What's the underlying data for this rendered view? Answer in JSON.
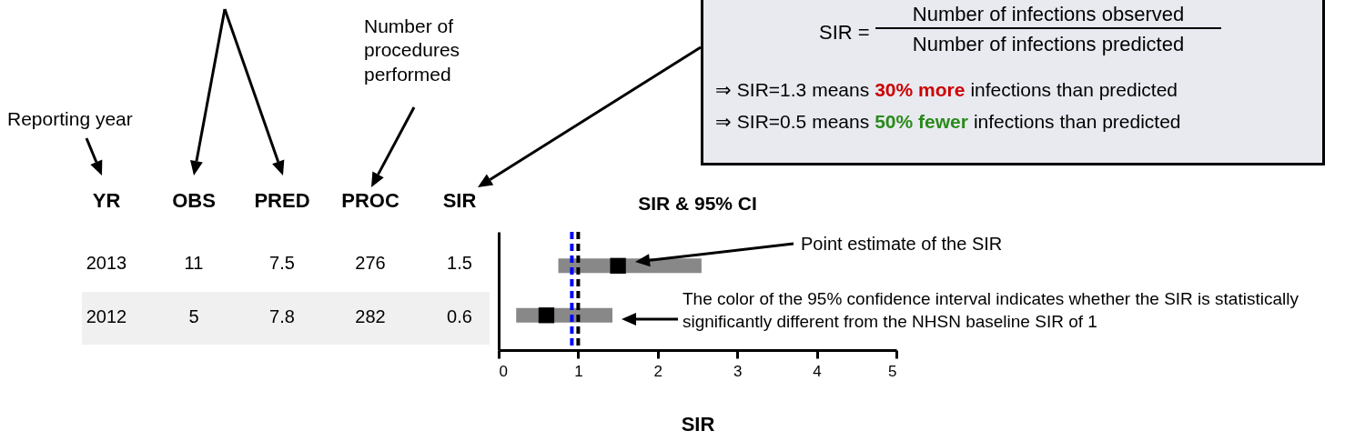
{
  "chart_data": [
    {
      "type": "other",
      "categories": [
        "YR",
        "OBS",
        "PRED",
        "PROC",
        "SIR"
      ],
      "cell_labels": [
        [
          "2013",
          "11",
          "7.5",
          "276",
          "1.5"
        ],
        [
          "2012",
          "5",
          "7.8",
          "282",
          "0.6"
        ]
      ]
    },
    {
      "type": "bar",
      "orientation": "horizontal",
      "title": "SIR & 95% CI",
      "xlabel": "SIR",
      "categories": [
        null,
        null
      ],
      "series": [
        {
          "type": "bar",
          "color": "#888888",
          "base": [
            0.75,
            0.22
          ],
          "values": [
            1.8,
            1.21
          ]
        },
        {
          "type": "scatter",
          "color": "#000000",
          "values": [
            1.5,
            0.6
          ]
        }
      ],
      "marker": "square",
      "xlim": [
        0,
        5
      ],
      "xticks": [
        0,
        1,
        2,
        3,
        4,
        5
      ],
      "tick_labels": "x",
      "ref_lines": [
        {
          "axis": "x",
          "value": 1,
          "color": "#000000",
          "line_style": "dashed"
        },
        {
          "axis": "x",
          "value": 0.92,
          "color": "#0000ff",
          "line_style": "dashed"
        }
      ],
      "annotations": [
        "Reporting year",
        "Number of procedures performed",
        "Point estimate of the SIR",
        "The color of the 95% confidence interval indicates whether the SIR is statistically significantly different from the NHSN baseline SIR of 1",
        "SIR =",
        "Number of infections observed",
        "Number of infections predicted",
        "⇒ SIR=1.3 means",
        "30% more",
        "infections than predicted",
        "⇒ SIR=0.5 means",
        "50% fewer",
        "infections than predicted"
      ]
    }
  ]
}
